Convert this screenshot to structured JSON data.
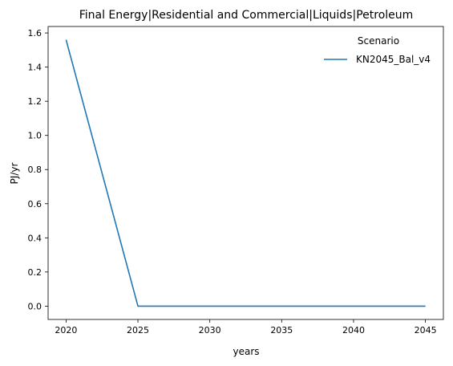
{
  "chart_data": {
    "type": "line",
    "title": "Final Energy|Residential and Commercial|Liquids|Petroleum",
    "xlabel": "years",
    "ylabel": "PJ/yr",
    "xlim": [
      2018.75,
      2046.25
    ],
    "ylim": [
      -0.078,
      1.638
    ],
    "xticks": [
      2020,
      2025,
      2030,
      2035,
      2040,
      2045
    ],
    "xtick_labels": [
      "2020",
      "2025",
      "2030",
      "2035",
      "2040",
      "2045"
    ],
    "yticks": [
      0.0,
      0.2,
      0.4,
      0.6,
      0.8,
      1.0,
      1.2,
      1.4,
      1.6
    ],
    "ytick_labels": [
      "0.0",
      "0.2",
      "0.4",
      "0.6",
      "0.8",
      "1.0",
      "1.2",
      "1.4",
      "1.6"
    ],
    "grid": false,
    "legend": {
      "title": "Scenario",
      "placement": "top-right"
    },
    "series": [
      {
        "name": "KN2045_Bal_v4",
        "color": "#1f77b4",
        "x": [
          2020,
          2025,
          2030,
          2035,
          2040,
          2045
        ],
        "y": [
          1.56,
          0.0,
          0.0,
          0.0,
          0.0,
          0.0
        ]
      }
    ]
  }
}
